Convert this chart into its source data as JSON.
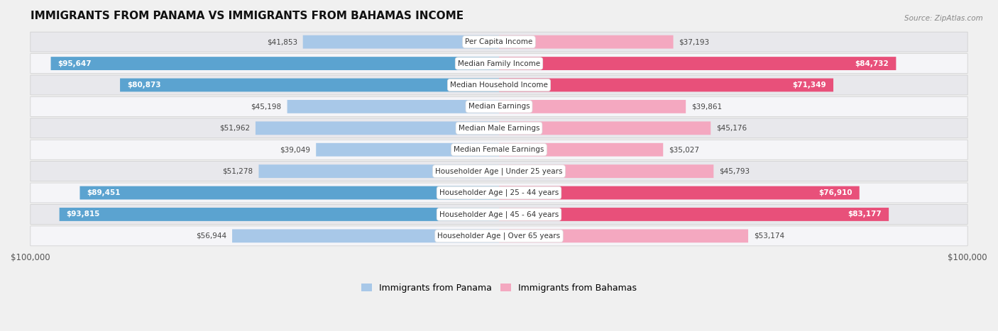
{
  "title": "IMMIGRANTS FROM PANAMA VS IMMIGRANTS FROM BAHAMAS INCOME",
  "source": "Source: ZipAtlas.com",
  "categories": [
    "Per Capita Income",
    "Median Family Income",
    "Median Household Income",
    "Median Earnings",
    "Median Male Earnings",
    "Median Female Earnings",
    "Householder Age | Under 25 years",
    "Householder Age | 25 - 44 years",
    "Householder Age | 45 - 64 years",
    "Householder Age | Over 65 years"
  ],
  "panama_values": [
    41853,
    95647,
    80873,
    45198,
    51962,
    39049,
    51278,
    89451,
    93815,
    56944
  ],
  "bahamas_values": [
    37193,
    84732,
    71349,
    39861,
    45176,
    35027,
    45793,
    76910,
    83177,
    53174
  ],
  "panama_labels": [
    "$41,853",
    "$95,647",
    "$80,873",
    "$45,198",
    "$51,962",
    "$39,049",
    "$51,278",
    "$89,451",
    "$93,815",
    "$56,944"
  ],
  "bahamas_labels": [
    "$37,193",
    "$84,732",
    "$71,349",
    "$39,861",
    "$45,176",
    "$35,027",
    "$45,793",
    "$76,910",
    "$83,177",
    "$53,174"
  ],
  "max_value": 100000,
  "panama_color_light": "#a8c8e8",
  "panama_color_dark": "#5ba3d0",
  "bahamas_color_light": "#f4a8c0",
  "bahamas_color_dark": "#e8507a",
  "panama_threshold": 70000,
  "bahamas_threshold": 70000,
  "bg_color": "#f0f0f0",
  "row_bg_even": "#e8e8ec",
  "row_bg_odd": "#f5f5f8",
  "label_color_inside": "#ffffff",
  "label_color_outside": "#555555",
  "bar_height": 0.62,
  "legend_panama": "Immigrants from Panama",
  "legend_bahamas": "Immigrants from Bahamas"
}
